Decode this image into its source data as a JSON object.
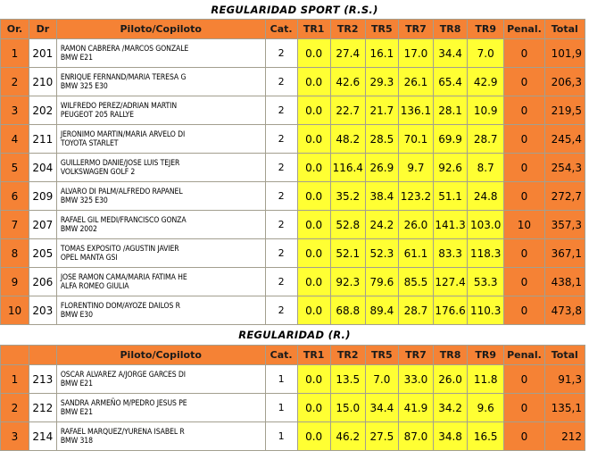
{
  "section1": {
    "title": "REGULARIDAD SPORT (R.S.)",
    "headers": [
      "Or.",
      "Dr",
      "Piloto/Copiloto",
      "Cat.",
      "TR1",
      "TR2",
      "TR5",
      "TR7",
      "TR8",
      "TR9",
      "Penal.",
      "Total"
    ],
    "rows": [
      {
        "or": "1",
        "dr": "201",
        "piloto": "RAMON CABRERA  /MARCOS  GONZALE",
        "coche": "BMW E21",
        "cat": "2",
        "tr1": "0.0",
        "tr2": "27.4",
        "tr5": "16.1",
        "tr7": "17.0",
        "tr8": "34.4",
        "tr9": "7.0",
        "penal": "0",
        "total": "101,9"
      },
      {
        "or": "2",
        "dr": "210",
        "piloto": "ENRIQUE FERNAND/MARIA TERESA  G",
        "coche": "BMW 325 E30",
        "cat": "2",
        "tr1": "0.0",
        "tr2": "42.6",
        "tr5": "29.3",
        "tr7": "26.1",
        "tr8": "65.4",
        "tr9": "42.9",
        "penal": "0",
        "total": "206,3"
      },
      {
        "or": "3",
        "dr": "202",
        "piloto": "WILFREDO  PEREZ/ADRIAN  MARTIN",
        "coche": "PEUGEOT 205 RALLYE",
        "cat": "2",
        "tr1": "0.0",
        "tr2": "22.7",
        "tr5": "21.7",
        "tr7": "136.1",
        "tr8": "28.1",
        "tr9": "10.9",
        "penal": "0",
        "total": "219,5"
      },
      {
        "or": "4",
        "dr": "211",
        "piloto": "JERONIMO MARTIN/MARIA ARVELO DI",
        "coche": "TOYOTA STARLET",
        "cat": "2",
        "tr1": "0.0",
        "tr2": "48.2",
        "tr5": "28.5",
        "tr7": "70.1",
        "tr8": "69.9",
        "tr9": "28.7",
        "penal": "0",
        "total": "245,4"
      },
      {
        "or": "5",
        "dr": "204",
        "piloto": "GUILLERMO DANIE/JOSE LUIS TEJER",
        "coche": "VOLKSWAGEN  GOLF 2",
        "cat": "2",
        "tr1": "0.0",
        "tr2": "116.4",
        "tr5": "26.9",
        "tr7": "9.7",
        "tr8": "92.6",
        "tr9": "8.7",
        "penal": "0",
        "total": "254,3"
      },
      {
        "or": "6",
        "dr": "209",
        "piloto": "ALVARO  DI PALM/ALFREDO RAPANEL",
        "coche": "BMW  325 E30",
        "cat": "2",
        "tr1": "0.0",
        "tr2": "35.2",
        "tr5": "38.4",
        "tr7": "123.2",
        "tr8": "51.1",
        "tr9": "24.8",
        "penal": "0",
        "total": "272,7"
      },
      {
        "or": "7",
        "dr": "207",
        "piloto": "RAFAEL GIL MEDI/FRANCISCO GONZA",
        "coche": "BMW 2002",
        "cat": "2",
        "tr1": "0.0",
        "tr2": "52.8",
        "tr5": "24.2",
        "tr7": "26.0",
        "tr8": "141.3",
        "tr9": "103.0",
        "penal": "10",
        "total": "357,3"
      },
      {
        "or": "8",
        "dr": "205",
        "piloto": "TOMAS EXPOSITO  /AGUSTIN JAVIER",
        "coche": "OPEL MANTA GSI",
        "cat": "2",
        "tr1": "0.0",
        "tr2": "52.1",
        "tr5": "52.3",
        "tr7": "61.1",
        "tr8": "83.3",
        "tr9": "118.3",
        "penal": "0",
        "total": "367,1"
      },
      {
        "or": "9",
        "dr": "206",
        "piloto": "JOSE RAMON CAMA/MARIA FATIMA HE",
        "coche": "ALFA ROMEO GIULIA",
        "cat": "2",
        "tr1": "0.0",
        "tr2": "92.3",
        "tr5": "79.6",
        "tr7": "85.5",
        "tr8": "127.4",
        "tr9": "53.3",
        "penal": "0",
        "total": "438,1"
      },
      {
        "or": "10",
        "dr": "203",
        "piloto": "FLORENTINO  DOM/AYOZE DAILOS  R",
        "coche": "BMW E30",
        "cat": "2",
        "tr1": "0.0",
        "tr2": "68.8",
        "tr5": "89.4",
        "tr7": "28.7",
        "tr8": "176.6",
        "tr9": "110.3",
        "penal": "0",
        "total": "473,8"
      }
    ]
  },
  "section2": {
    "title": "REGULARIDAD (R.)",
    "headers": [
      "",
      "",
      "Piloto/Copiloto",
      "Cat.",
      "TR1",
      "TR2",
      "TR5",
      "TR7",
      "TR8",
      "TR9",
      "Penal.",
      "Total"
    ],
    "rows": [
      {
        "or": "1",
        "dr": "213",
        "piloto": "OSCAR ALVAREZ A/JORGE GARCES DI",
        "coche": "BMW E21",
        "cat": "1",
        "tr1": "0.0",
        "tr2": "13.5",
        "tr5": "7.0",
        "tr7": "33.0",
        "tr8": "26.0",
        "tr9": "11.8",
        "penal": "0",
        "total": "91,3"
      },
      {
        "or": "2",
        "dr": "212",
        "piloto": "SANDRA ARMEÑO M/PEDRO JESUS  PE",
        "coche": "BMW E21",
        "cat": "1",
        "tr1": "0.0",
        "tr2": "15.0",
        "tr5": "34.4",
        "tr7": "41.9",
        "tr8": "34.2",
        "tr9": "9.6",
        "penal": "0",
        "total": "135,1"
      },
      {
        "or": "3",
        "dr": "214",
        "piloto": "RAFAEL  MARQUEZ/YURENA ISABEL R",
        "coche": "BMW 318",
        "cat": "1",
        "tr1": "0.0",
        "tr2": "46.2",
        "tr5": "27.5",
        "tr7": "87.0",
        "tr8": "34.8",
        "tr9": "16.5",
        "penal": "0",
        "total": "212"
      }
    ]
  }
}
